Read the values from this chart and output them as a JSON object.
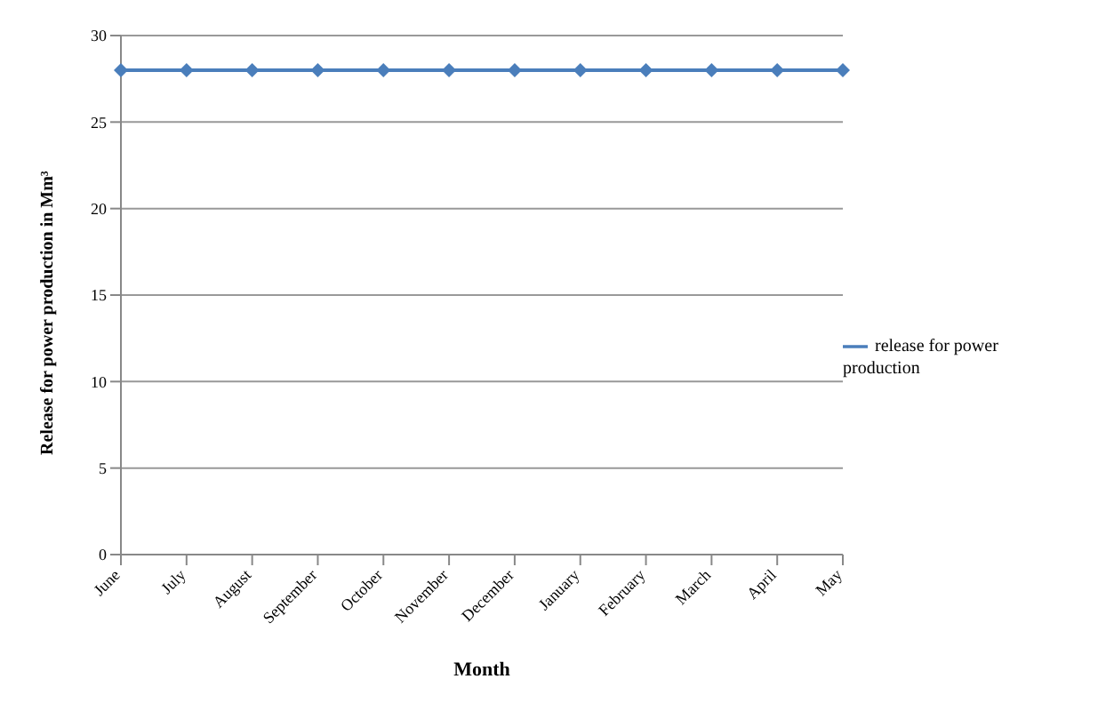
{
  "chart_data": {
    "type": "line",
    "xlabel": "Month",
    "ylabel": "Release for power production in Mm³",
    "categories": [
      "June",
      "July",
      "August",
      "September",
      "October",
      "November",
      "December",
      "January",
      "February",
      "March",
      "April",
      "May"
    ],
    "series": [
      {
        "name": "release for power production",
        "color": "#4a7ebb",
        "values": [
          28,
          28,
          28,
          28,
          28,
          28,
          28,
          28,
          28,
          28,
          28,
          28
        ]
      }
    ],
    "ylim": [
      0,
      30
    ],
    "yticks": [
      0,
      5,
      10,
      15,
      20,
      25,
      30
    ],
    "grid": "y",
    "legend": "right",
    "marker": "diamond",
    "line_style": "solid"
  }
}
